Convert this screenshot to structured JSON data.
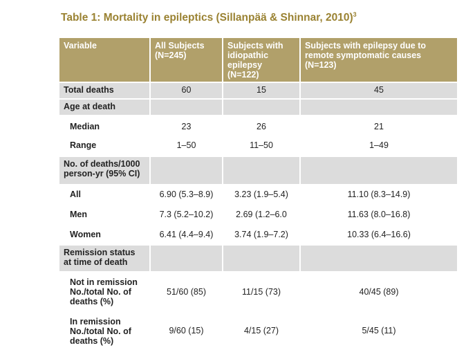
{
  "title": "Table 1: Mortality in epileptics (Sillanpää & Shinnar, 2010)",
  "title_ref": "3",
  "colors": {
    "header_bg": "#b1a06a",
    "title": "#9a8232",
    "row_grey": "#dcdcdc"
  },
  "headers": [
    "Variable",
    "All Subjects (N=245)",
    "Subjects with idiopathic epilepsy (N=122)",
    "Subjects with epilepsy due to remote symptomatic causes (N=123)"
  ],
  "rows": {
    "total_deaths": {
      "label": "Total deaths",
      "values": [
        "60",
        "15",
        "45"
      ]
    },
    "age_at_death": {
      "label": "Age at death"
    },
    "median": {
      "label": "Median",
      "values": [
        "23",
        "26",
        "21"
      ]
    },
    "range": {
      "label": "Range",
      "values": [
        "1–50",
        "11–50",
        "1–49"
      ]
    },
    "deaths_per_1000": {
      "label": "No. of deaths/1000 person-yr (95% CI)"
    },
    "all": {
      "label": "All",
      "values": [
        "6.90 (5.3–8.9)",
        "3.23 (1.9–5.4)",
        "11.10 (8.3–14.9)"
      ]
    },
    "men": {
      "label": "Men",
      "values": [
        "7.3 (5.2–10.2)",
        "2.69 (1.2–6.0",
        "11.63 (8.0–16.8)"
      ]
    },
    "women": {
      "label": "Women",
      "values": [
        "6.41 (4.4–9.4)",
        "3.74 (1.9–7.2)",
        "10.33 (6.4–16.6)"
      ]
    },
    "remission_status": {
      "label": "Remission status at time of death"
    },
    "not_in_remission": {
      "label": "Not in remission No./total No. of deaths (%)",
      "values": [
        "51/60 (85)",
        "11/15 (73)",
        "40/45 (89)"
      ]
    },
    "in_remission": {
      "label": "In remission No./total No. of deaths (%)",
      "values": [
        "9/60 (15)",
        "4/15 (27)",
        "5/45 (11)"
      ]
    }
  }
}
